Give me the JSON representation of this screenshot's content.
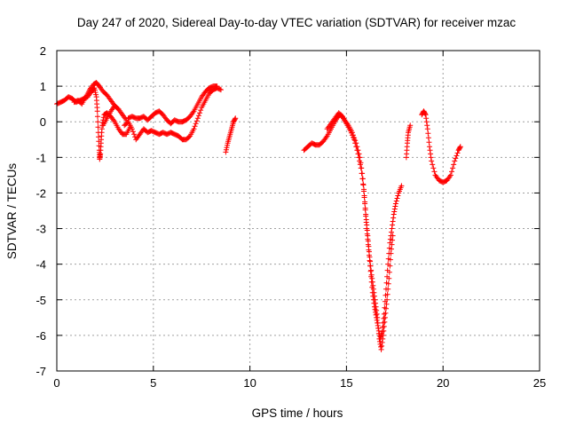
{
  "chart_data": {
    "type": "scatter",
    "title": "Day 247 of 2020, Sidereal Day-to-day VTEC variation (SDTVAR) for receiver mzac",
    "xlabel": "GPS time / hours",
    "ylabel": "SDTVAR / TECUs",
    "xlim": [
      0,
      25
    ],
    "ylim": [
      -7,
      2
    ],
    "xticks": [
      "0",
      "5",
      "10",
      "15",
      "20",
      "25"
    ],
    "yticks": [
      "2",
      "1",
      "0",
      "-1",
      "-2",
      "-3",
      "-4",
      "-5",
      "-6",
      "-7"
    ],
    "grid": true,
    "marker": "plus",
    "color": "#ff0000",
    "segments": [
      [
        [
          0.0,
          0.5
        ],
        [
          0.2,
          0.55
        ],
        [
          0.4,
          0.6
        ],
        [
          0.6,
          0.7
        ],
        [
          0.8,
          0.65
        ],
        [
          1.0,
          0.55
        ],
        [
          1.2,
          0.6
        ],
        [
          1.4,
          0.65
        ],
        [
          1.6,
          0.7
        ],
        [
          1.8,
          0.85
        ],
        [
          1.95,
          0.95
        ],
        [
          2.05,
          0.7
        ],
        [
          2.1,
          0.3
        ],
        [
          2.15,
          -0.3
        ],
        [
          2.2,
          -0.8
        ],
        [
          2.22,
          -1.05
        ],
        [
          2.26,
          -0.9
        ],
        [
          2.3,
          -0.5
        ],
        [
          2.35,
          -0.1
        ],
        [
          2.45,
          0.2
        ],
        [
          2.6,
          0.25
        ],
        [
          2.8,
          0.15
        ],
        [
          3.0,
          0.0
        ],
        [
          3.2,
          -0.2
        ],
        [
          3.4,
          -0.35
        ],
        [
          3.6,
          -0.35
        ],
        [
          3.8,
          -0.15
        ]
      ],
      [
        [
          0.9,
          0.55
        ],
        [
          1.1,
          0.6
        ],
        [
          1.3,
          0.5
        ],
        [
          1.5,
          0.7
        ],
        [
          1.7,
          0.9
        ],
        [
          1.9,
          1.05
        ],
        [
          2.05,
          1.1
        ],
        [
          2.2,
          1.0
        ],
        [
          2.4,
          0.85
        ],
        [
          2.6,
          0.75
        ],
        [
          2.8,
          0.6
        ],
        [
          3.0,
          0.45
        ],
        [
          3.2,
          0.35
        ]
      ],
      [
        [
          2.4,
          -0.1
        ],
        [
          2.6,
          0.1
        ],
        [
          2.8,
          0.3
        ],
        [
          3.0,
          0.45
        ],
        [
          3.2,
          0.35
        ],
        [
          3.4,
          0.2
        ],
        [
          3.6,
          0.05
        ]
      ],
      [
        [
          3.5,
          -0.1
        ],
        [
          3.7,
          0.0
        ],
        [
          3.9,
          -0.2
        ],
        [
          4.1,
          -0.5
        ],
        [
          4.3,
          -0.35
        ],
        [
          4.5,
          -0.2
        ],
        [
          4.7,
          -0.3
        ],
        [
          4.9,
          -0.25
        ],
        [
          5.1,
          -0.3
        ],
        [
          5.3,
          -0.35
        ],
        [
          5.5,
          -0.3
        ],
        [
          5.7,
          -0.35
        ],
        [
          5.9,
          -0.3
        ],
        [
          6.1,
          -0.35
        ],
        [
          6.3,
          -0.4
        ],
        [
          6.5,
          -0.5
        ],
        [
          6.7,
          -0.5
        ],
        [
          6.9,
          -0.4
        ],
        [
          7.1,
          -0.2
        ],
        [
          7.3,
          0.1
        ],
        [
          7.5,
          0.4
        ],
        [
          7.7,
          0.6
        ],
        [
          7.9,
          0.8
        ],
        [
          8.1,
          0.9
        ],
        [
          8.3,
          0.95
        ],
        [
          8.5,
          0.9
        ]
      ],
      [
        [
          3.7,
          0.1
        ],
        [
          3.9,
          0.15
        ],
        [
          4.1,
          0.1
        ],
        [
          4.3,
          0.1
        ],
        [
          4.5,
          0.15
        ],
        [
          4.7,
          0.05
        ],
        [
          4.9,
          0.15
        ],
        [
          5.1,
          0.25
        ],
        [
          5.3,
          0.3
        ],
        [
          5.5,
          0.2
        ],
        [
          5.7,
          0.05
        ],
        [
          5.9,
          -0.05
        ],
        [
          6.1,
          0.05
        ],
        [
          6.3,
          0.0
        ],
        [
          6.5,
          0.0
        ],
        [
          6.7,
          0.05
        ],
        [
          6.9,
          0.15
        ],
        [
          7.1,
          0.3
        ],
        [
          7.3,
          0.5
        ],
        [
          7.5,
          0.7
        ],
        [
          7.7,
          0.85
        ],
        [
          7.9,
          0.95
        ],
        [
          8.1,
          1.0
        ],
        [
          8.3,
          1.0
        ]
      ],
      [
        [
          8.75,
          -0.85
        ],
        [
          8.85,
          -0.6
        ],
        [
          8.95,
          -0.4
        ],
        [
          9.05,
          -0.2
        ],
        [
          9.15,
          0.0
        ],
        [
          9.25,
          0.1
        ]
      ],
      [
        [
          12.8,
          -0.8
        ],
        [
          13.0,
          -0.7
        ],
        [
          13.2,
          -0.6
        ],
        [
          13.4,
          -0.65
        ],
        [
          13.6,
          -0.65
        ],
        [
          13.8,
          -0.55
        ],
        [
          14.0,
          -0.4
        ],
        [
          14.2,
          -0.2
        ],
        [
          14.4,
          0.0
        ],
        [
          14.55,
          0.15
        ],
        [
          14.7,
          0.2
        ],
        [
          14.9,
          0.05
        ],
        [
          15.1,
          -0.1
        ],
        [
          15.3,
          -0.3
        ],
        [
          15.5,
          -0.6
        ],
        [
          15.7,
          -1.0
        ],
        [
          15.85,
          -1.6
        ],
        [
          15.95,
          -2.3
        ],
        [
          16.05,
          -3.0
        ],
        [
          16.15,
          -3.6
        ],
        [
          16.25,
          -4.2
        ],
        [
          16.35,
          -4.8
        ],
        [
          16.45,
          -5.2
        ],
        [
          16.55,
          -5.5
        ],
        [
          16.65,
          -5.8
        ],
        [
          16.75,
          -6.1
        ],
        [
          16.85,
          -5.9
        ],
        [
          16.95,
          -5.4
        ],
        [
          17.05,
          -4.7
        ],
        [
          17.15,
          -4.0
        ],
        [
          17.25,
          -3.4
        ],
        [
          17.35,
          -3.0
        ],
        [
          17.45,
          -2.6
        ],
        [
          17.55,
          -2.3
        ],
        [
          17.7,
          -2.0
        ],
        [
          17.85,
          -1.8
        ]
      ],
      [
        [
          14.0,
          -0.2
        ],
        [
          14.2,
          -0.05
        ],
        [
          14.4,
          0.1
        ],
        [
          14.6,
          0.25
        ],
        [
          14.8,
          0.15
        ],
        [
          15.0,
          -0.05
        ],
        [
          15.2,
          -0.25
        ],
        [
          15.4,
          -0.5
        ],
        [
          15.6,
          -0.9
        ],
        [
          15.75,
          -1.3
        ],
        [
          15.9,
          -1.9
        ],
        [
          16.0,
          -2.6
        ],
        [
          16.1,
          -3.2
        ],
        [
          16.2,
          -3.8
        ],
        [
          16.3,
          -4.3
        ],
        [
          16.4,
          -4.7
        ],
        [
          16.5,
          -5.1
        ],
        [
          16.6,
          -5.5
        ],
        [
          16.7,
          -6.1
        ],
        [
          16.8,
          -6.4
        ],
        [
          16.9,
          -6.0
        ],
        [
          17.0,
          -5.5
        ],
        [
          17.1,
          -5.0
        ],
        [
          17.2,
          -4.4
        ],
        [
          17.3,
          -3.7
        ],
        [
          17.4,
          -3.2
        ]
      ],
      [
        [
          18.1,
          -1.0
        ],
        [
          18.15,
          -0.6
        ],
        [
          18.2,
          -0.3
        ],
        [
          18.3,
          -0.1
        ]
      ],
      [
        [
          18.9,
          0.2
        ],
        [
          19.0,
          0.3
        ],
        [
          19.1,
          0.2
        ],
        [
          19.2,
          -0.2
        ],
        [
          19.3,
          -0.7
        ],
        [
          19.4,
          -1.1
        ],
        [
          19.6,
          -1.5
        ],
        [
          19.8,
          -1.65
        ],
        [
          20.0,
          -1.7
        ],
        [
          20.2,
          -1.65
        ],
        [
          20.4,
          -1.5
        ],
        [
          20.6,
          -1.1
        ],
        [
          20.8,
          -0.8
        ],
        [
          20.9,
          -0.7
        ]
      ]
    ]
  }
}
